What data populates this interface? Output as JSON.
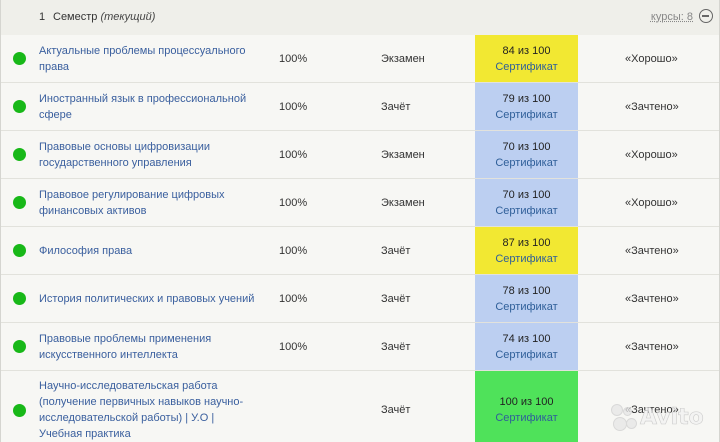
{
  "semester": {
    "number": "1",
    "title": "Семестр",
    "current": "(текущий)",
    "courses_label": "курсы: 8"
  },
  "courses": [
    {
      "name": "Актуальные проблемы процессуального права",
      "percent": "100%",
      "type": "Экзамен",
      "score": "84 из 100",
      "cert": "Сертификат",
      "grade_color": "yellow",
      "result": "«Хорошо»"
    },
    {
      "name": "Иностранный язык в профессиональной сфере",
      "percent": "100%",
      "type": "Зачёт",
      "score": "79 из 100",
      "cert": "Сертификат",
      "grade_color": "blue",
      "result": "«Зачтено»"
    },
    {
      "name": "Правовые основы цифровизации государственного управления",
      "percent": "100%",
      "type": "Экзамен",
      "score": "70 из 100",
      "cert": "Сертификат",
      "grade_color": "blue",
      "result": "«Хорошо»"
    },
    {
      "name": "Правовое регулирование цифровых финансовых активов",
      "percent": "100%",
      "type": "Экзамен",
      "score": "70 из 100",
      "cert": "Сертификат",
      "grade_color": "blue",
      "result": "«Хорошо»"
    },
    {
      "name": "Философия права",
      "percent": "100%",
      "type": "Зачёт",
      "score": "87 из 100",
      "cert": "Сертификат",
      "grade_color": "yellow",
      "result": "«Зачтено»"
    },
    {
      "name": "История политических и правовых учений",
      "percent": "100%",
      "type": "Зачёт",
      "score": "78 из 100",
      "cert": "Сертификат",
      "grade_color": "blue",
      "result": "«Зачтено»"
    },
    {
      "name": "Правовые проблемы применения искусственного интеллекта",
      "percent": "100%",
      "type": "Зачёт",
      "score": "74 из 100",
      "cert": "Сертификат",
      "grade_color": "blue",
      "result": "«Зачтено»"
    },
    {
      "name": "Научно-исследовательская работа (получение первичных навыков научно-исследовательской работы) | У.О | Учебная практика",
      "percent": "",
      "type": "Зачёт",
      "score": "100 из 100",
      "cert": "Сертификат",
      "grade_color": "green",
      "result": "«Зачтено»"
    }
  ],
  "watermark": {
    "text": "Avito"
  }
}
